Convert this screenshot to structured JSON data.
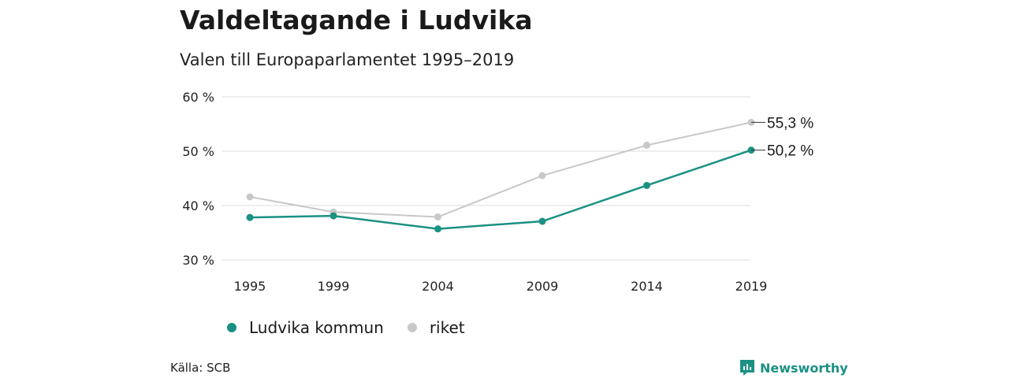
{
  "colors": {
    "ludvika": "#1a9183",
    "riket": "#c8c8c8",
    "grid": "#dddddd",
    "brand": "#1a9183"
  },
  "source": "Källa: SCB",
  "brand_name": "Newsworthy",
  "legend": [
    {
      "label": "Ludvika kommun",
      "color_key": "ludvika"
    },
    {
      "label": "riket",
      "color_key": "riket"
    }
  ],
  "chart_data": {
    "type": "line",
    "title": "Valdeltagande i Ludvika",
    "subtitle": "Valen till Europaparlamentet 1995–2019",
    "x": [
      1995,
      1999,
      2004,
      2009,
      2014,
      2019
    ],
    "ylim": [
      30,
      60
    ],
    "yticks": [
      30,
      40,
      50,
      60
    ],
    "ytick_labels": [
      "30 %",
      "40 %",
      "50 %",
      "60 %"
    ],
    "grid": true,
    "legend_position": "bottom-left",
    "series": [
      {
        "name": "Ludvika kommun",
        "values": [
          37.8,
          38.1,
          35.7,
          37.1,
          43.7,
          50.2
        ],
        "end_label": "50,2 %"
      },
      {
        "name": "riket",
        "values": [
          41.6,
          38.8,
          37.9,
          45.5,
          51.1,
          55.3
        ],
        "end_label": "55,3 %"
      }
    ]
  }
}
